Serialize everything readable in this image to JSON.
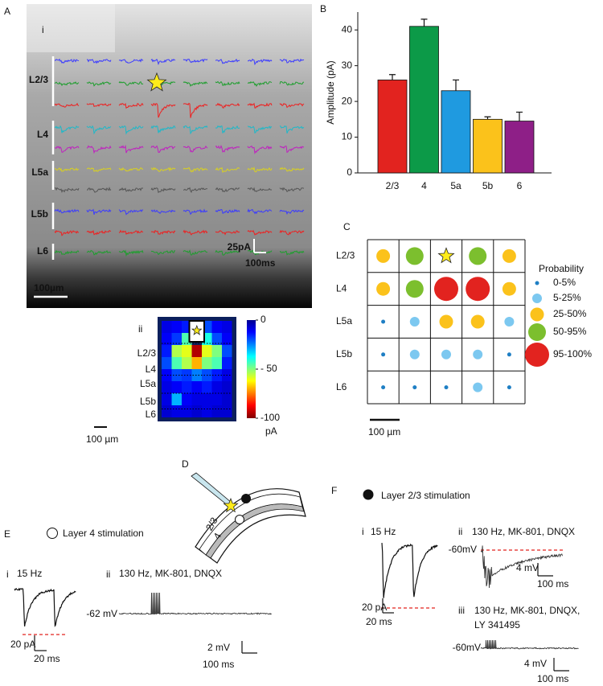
{
  "figure": {
    "A": {
      "label": "A",
      "sub": "i",
      "layers": [
        "L2/3",
        "L4",
        "L5a",
        "L5b",
        "L6"
      ],
      "scale_y": "25pA",
      "scale_x": "100ms",
      "scale_dist": "100µm"
    },
    "Aii": {
      "sub": "ii",
      "layers": [
        "L2/3",
        "L4",
        "L5a",
        "L5b",
        "L6"
      ],
      "values": [
        [
          -10,
          -12,
          -15,
          null,
          -20,
          -12,
          -10
        ],
        [
          -12,
          -18,
          -45,
          null,
          -40,
          -20,
          -12
        ],
        [
          -15,
          -55,
          -60,
          -95,
          -60,
          -50,
          -20
        ],
        [
          -20,
          -45,
          -55,
          -70,
          -50,
          -45,
          -15
        ],
        [
          -12,
          -20,
          -18,
          -25,
          -20,
          -15,
          -10
        ],
        [
          -10,
          -12,
          -15,
          -12,
          -15,
          -10,
          -8
        ],
        [
          -10,
          -30,
          -12,
          -10,
          -10,
          -10,
          -8
        ],
        [
          -8,
          -10,
          -10,
          -8,
          -10,
          -8,
          -8
        ]
      ],
      "ylim": [
        -100,
        0
      ],
      "yticks": [
        0,
        {
          "value": -50,
          "label": "- 50"
        },
        -100
      ],
      "unit": "pA",
      "scale_dist": "100 µm"
    },
    "B": {
      "label": "B"
    },
    "C": {
      "label": "C",
      "rows": [
        "L2/3",
        "L4",
        "L5a",
        "L5b",
        "L6"
      ],
      "grid": [
        [
          2,
          3,
          null,
          3,
          2
        ],
        [
          2,
          3,
          4,
          4,
          2
        ],
        [
          0,
          1,
          2,
          2,
          1
        ],
        [
          0,
          1,
          1,
          1,
          0
        ],
        [
          0,
          0,
          0,
          1,
          0
        ]
      ],
      "legend_title": "Probability",
      "legend": [
        "0-5%",
        "5-25%",
        "25-50%",
        "50-95%",
        "95-100%"
      ],
      "legend_colors": [
        "#1f7fc4",
        "#7cc8f0",
        "#fbc21b",
        "#7cbf2e",
        "#e2231f"
      ],
      "scale_dist": "100 µm"
    },
    "D": {
      "label": "D",
      "layer_a": "2/3",
      "layer_b": "4"
    },
    "E": {
      "label": "E",
      "stim": "Layer 4 stimulation",
      "i": "i",
      "i_title": "15 Hz",
      "i_y": "20 pA",
      "i_x": "20 ms",
      "ii": "ii",
      "ii_title": "130 Hz, MK-801, DNQX",
      "ii_vm": "-62 mV",
      "ii_y": "2 mV",
      "ii_x": "100 ms"
    },
    "F": {
      "label": "F",
      "stim": "Layer 2/3 stimulation",
      "i": "i",
      "i_title": "15 Hz",
      "i_y": "20 pA",
      "i_x": "20 ms",
      "ii": "ii",
      "ii_title": "130 Hz, MK-801, DNQX",
      "ii_vm": "-60mV",
      "ii_y": "4 mV",
      "ii_x": "100 ms",
      "iii": "iii",
      "iii_title": "130 Hz, MK-801, DNQX,",
      "iii_title2": "LY 341495",
      "iii_vm": "-60mV",
      "iii_y": "4 mV",
      "iii_x": "100 ms"
    }
  },
  "chart_data": {
    "type": "bar",
    "y_label": "Amplitude (pA)",
    "categories": [
      "2/3",
      "4",
      "5a",
      "5b",
      "6"
    ],
    "values": [
      26,
      41,
      23,
      15,
      14.5
    ],
    "errors": [
      1.5,
      2,
      3,
      0.7,
      2.5
    ],
    "colors": [
      "#e2231f",
      "#0c9a48",
      "#1f9ae0",
      "#fbc21b",
      "#8e1f87"
    ],
    "ylim": [
      0,
      45
    ],
    "yticks": [
      0,
      10,
      20,
      30,
      40
    ]
  }
}
